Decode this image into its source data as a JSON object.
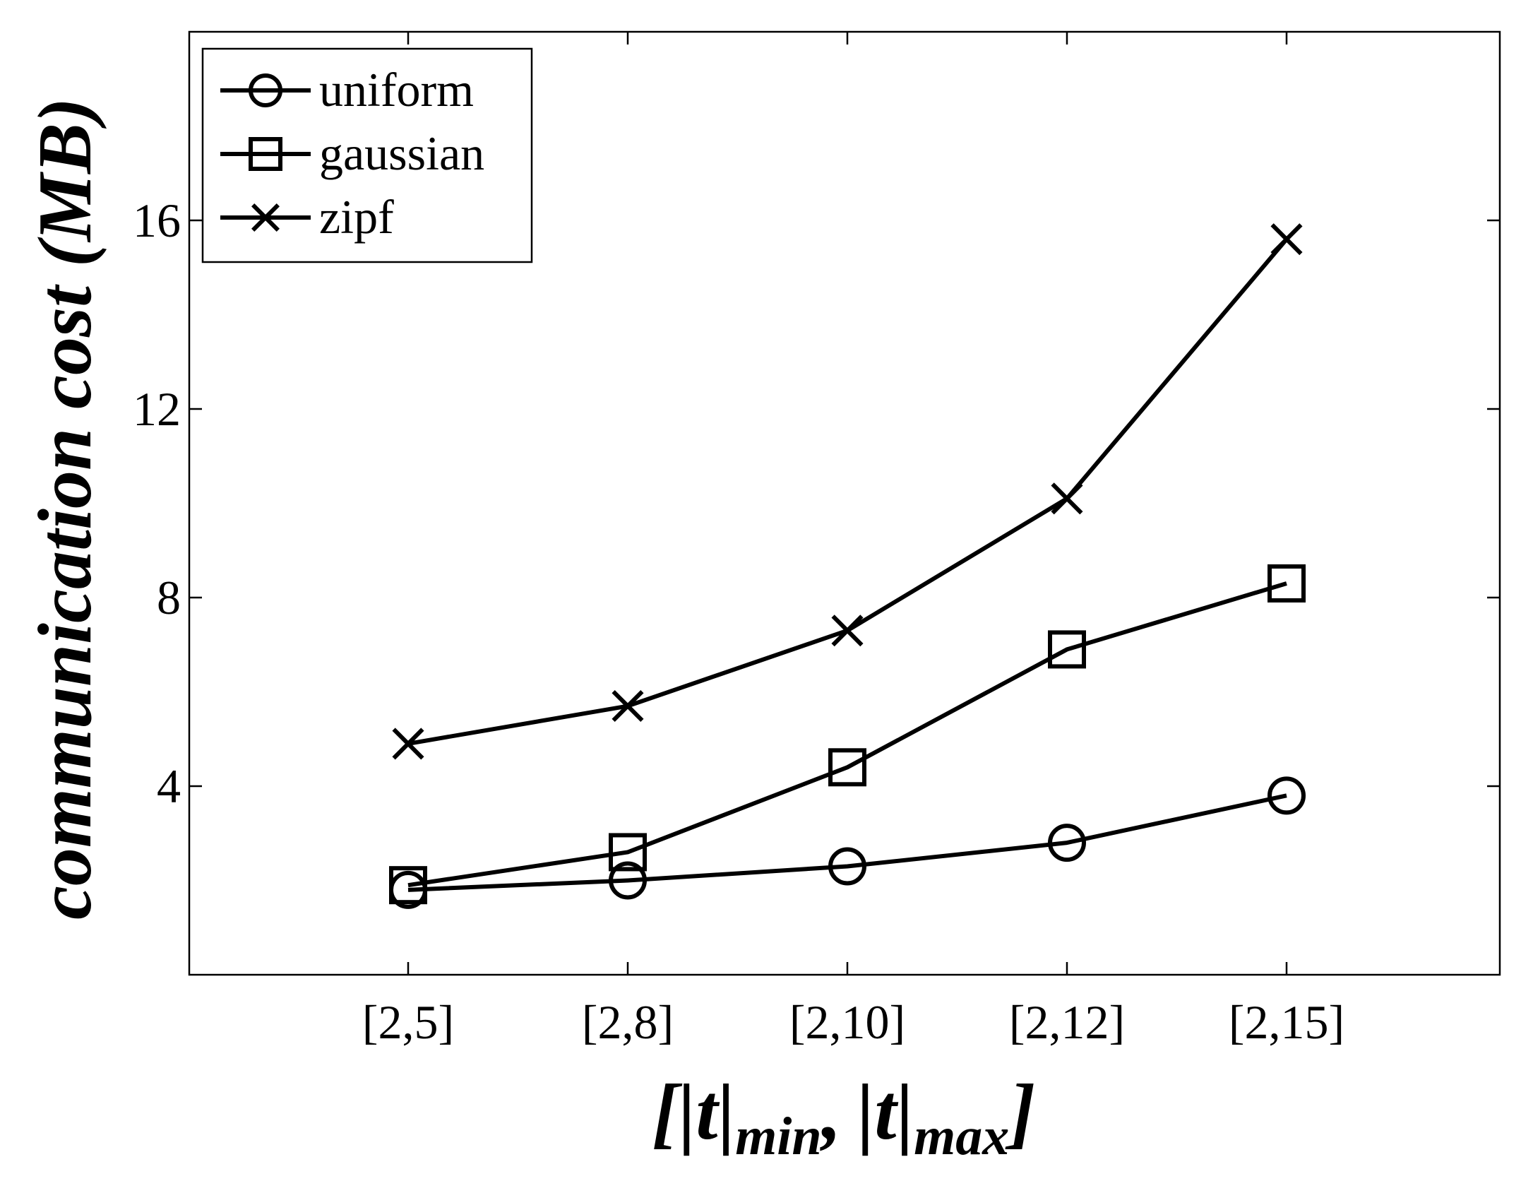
{
  "chart_data": {
    "type": "line",
    "title": "",
    "xlabel": {
      "open": "[|",
      "t": "t",
      "bar": "|",
      "min": "min",
      "comma": ",",
      "max": "max",
      "close": "]"
    },
    "ylabel": "communication cost (MB)",
    "categories": [
      "[2,5]",
      "[2,8]",
      "[2,10]",
      "[2,12]",
      "[2,15]"
    ],
    "ylim": [
      0,
      20
    ],
    "yticks": [
      4,
      8,
      12,
      16
    ],
    "legend_position": "top-left",
    "grid": false,
    "series": [
      {
        "name": "uniform",
        "marker": "circle",
        "values": [
          1.8,
          2.0,
          2.3,
          2.8,
          3.8
        ]
      },
      {
        "name": "gaussian",
        "marker": "square",
        "values": [
          1.9,
          2.6,
          4.4,
          6.9,
          8.3
        ]
      },
      {
        "name": "zipf",
        "marker": "x",
        "values": [
          4.9,
          5.7,
          7.3,
          10.1,
          15.6
        ]
      }
    ],
    "color": "#000000"
  }
}
